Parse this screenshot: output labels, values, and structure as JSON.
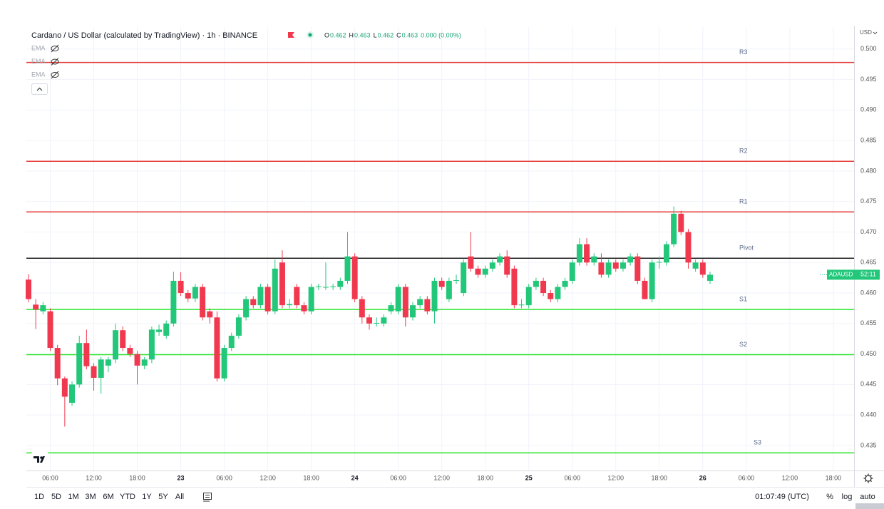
{
  "chart_data": {
    "type": "candlestick",
    "title": "Cardano / US Dollar (calculated by TradingView) · 1h · BINANCE",
    "legend": [
      {
        "label": "O",
        "value": "0.462"
      },
      {
        "label": "H",
        "value": "0.463"
      },
      {
        "label": "L",
        "value": "0.462"
      },
      {
        "label": "C",
        "value": "0.463"
      }
    ],
    "change": "0.000 (0.00%)",
    "indicators": [
      "EMA",
      "EMA",
      "EMA"
    ],
    "currency": "USD",
    "symbol_tag": "ADAUSD",
    "countdown": "52:11",
    "up_color": "#22c77a",
    "down_color": "#f0394f",
    "grid": true,
    "categories": [
      null,
      null,
      null,
      "06:00",
      null,
      null,
      null,
      null,
      null,
      "12:00",
      null,
      null,
      null,
      null,
      null,
      "18:00",
      null,
      null,
      null,
      null,
      null,
      "23",
      null,
      null,
      null,
      null,
      null,
      "06:00",
      null,
      null,
      null,
      null,
      null,
      "12:00",
      null,
      null,
      null,
      null,
      null,
      "18:00",
      null,
      null,
      null,
      null,
      null,
      "24",
      null,
      null,
      null,
      null,
      null,
      "06:00",
      null,
      null,
      null,
      null,
      null,
      "12:00",
      null,
      null,
      null,
      null,
      null,
      "18:00",
      null,
      null,
      null,
      null,
      null,
      "25",
      null,
      null,
      null,
      null,
      null,
      "06:00",
      null,
      null,
      null,
      null,
      null,
      "12:00",
      null,
      null,
      null,
      null,
      null,
      "18:00",
      null,
      null,
      null,
      null,
      null,
      "26",
      null,
      null,
      null,
      null,
      null,
      "06:00",
      null,
      null,
      null,
      null,
      null,
      "12:00",
      null,
      null,
      null,
      null,
      null,
      "18:00",
      null,
      null
    ],
    "open": [
      0.4622,
      0.4581,
      0.457,
      0.457,
      0.451,
      0.446,
      0.442,
      0.445,
      0.4518,
      0.448,
      0.4461,
      0.4481,
      0.4491,
      0.4539,
      0.451,
      0.45,
      0.4481,
      0.4491,
      0.4536,
      0.453,
      0.455,
      0.462,
      0.46,
      0.4591,
      0.461,
      0.457,
      0.456,
      0.446,
      0.451,
      0.453,
      0.456,
      0.459,
      0.458,
      0.461,
      0.457,
      0.465,
      0.458,
      0.461,
      0.458,
      0.457,
      0.461,
      0.461,
      0.461,
      0.461,
      0.462,
      0.466,
      0.459,
      0.456,
      0.455,
      0.455,
      0.457,
      0.457,
      0.461,
      0.456,
      0.458,
      0.459,
      0.457,
      0.462,
      0.459,
      0.462,
      0.46,
      0.466,
      0.464,
      0.463,
      0.464,
      0.465,
      0.466,
      0.464,
      0.458,
      0.458,
      0.461,
      0.462,
      0.46,
      0.459,
      0.461,
      0.462,
      0.465,
      0.468,
      0.465,
      0.465,
      0.463,
      0.465,
      0.464,
      0.465,
      0.466,
      0.462,
      0.459,
      0.465,
      0.465,
      0.468,
      0.473,
      0.47,
      0.464,
      0.465,
      0.462,
      null,
      null,
      null,
      null,
      null,
      null,
      null,
      null,
      null,
      null,
      null,
      null,
      null,
      null,
      null,
      null,
      null,
      null,
      null
    ],
    "high": [
      0.4631,
      0.459,
      0.4585,
      0.4575,
      0.4515,
      0.4463,
      0.4455,
      0.453,
      0.454,
      0.4485,
      0.4495,
      0.4495,
      0.455,
      0.4545,
      0.4515,
      0.4505,
      0.4495,
      0.4545,
      0.4548,
      0.4555,
      0.4635,
      0.4634,
      0.4605,
      0.4615,
      0.4615,
      0.4575,
      0.457,
      0.4515,
      0.4535,
      0.4565,
      0.4595,
      0.4595,
      0.4615,
      0.4615,
      0.4655,
      0.467,
      0.459,
      0.4615,
      0.4585,
      0.4615,
      0.4615,
      0.465,
      0.4615,
      0.4625,
      0.47,
      0.4665,
      0.4595,
      0.4565,
      0.456,
      0.4565,
      0.4585,
      0.4615,
      0.4615,
      0.4585,
      0.4595,
      0.4595,
      0.4625,
      0.4625,
      0.4625,
      0.463,
      0.4655,
      0.47,
      0.4645,
      0.4645,
      0.4655,
      0.4665,
      0.467,
      0.4645,
      0.459,
      0.4615,
      0.4625,
      0.4625,
      0.4605,
      0.4615,
      0.4625,
      0.4655,
      0.469,
      0.469,
      0.4665,
      0.4665,
      0.4655,
      0.4655,
      0.4655,
      0.4665,
      0.4665,
      0.4625,
      0.4655,
      0.466,
      0.4685,
      0.4742,
      0.4735,
      0.4705,
      0.4655,
      0.4655,
      0.4635,
      null,
      null,
      null,
      null,
      null,
      null,
      null,
      null,
      null,
      null,
      null,
      null,
      null,
      null,
      null,
      null,
      null,
      null,
      null
    ],
    "low": [
      0.4585,
      0.4541,
      0.4565,
      0.4505,
      0.4449,
      0.4381,
      0.4415,
      0.4445,
      0.4475,
      0.444,
      0.4435,
      0.447,
      0.4485,
      0.4505,
      0.4495,
      0.445,
      0.4475,
      0.4485,
      0.453,
      0.4525,
      0.4545,
      0.4595,
      0.4585,
      0.4585,
      0.4555,
      0.455,
      0.4455,
      0.4455,
      0.4505,
      0.4525,
      0.4555,
      0.4575,
      0.4575,
      0.4565,
      0.4565,
      0.4575,
      0.4575,
      0.4575,
      0.4565,
      0.4565,
      0.4605,
      0.4605,
      0.4605,
      0.4605,
      0.4615,
      0.4585,
      0.455,
      0.454,
      0.4545,
      0.4545,
      0.4565,
      0.4565,
      0.4545,
      0.4555,
      0.4575,
      0.4565,
      0.455,
      0.4605,
      0.4585,
      0.4615,
      0.4595,
      0.4635,
      0.4625,
      0.4625,
      0.4635,
      0.4645,
      0.4625,
      0.4575,
      0.4575,
      0.4575,
      0.4605,
      0.4595,
      0.4585,
      0.4585,
      0.4605,
      0.4615,
      0.4645,
      0.4645,
      0.4645,
      0.4625,
      0.4625,
      0.4635,
      0.4635,
      0.4645,
      0.4615,
      0.459,
      0.4585,
      0.464,
      0.4645,
      0.4675,
      0.4695,
      0.464,
      0.4635,
      0.4625,
      0.4615,
      null,
      null,
      null,
      null,
      null,
      null,
      null,
      null,
      null,
      null,
      null,
      null,
      null,
      null,
      null,
      null,
      null,
      null,
      null
    ],
    "close": [
      0.459,
      0.4573,
      0.458,
      0.451,
      0.446,
      0.443,
      0.445,
      0.4518,
      0.448,
      0.4461,
      0.4491,
      0.4491,
      0.4539,
      0.451,
      0.45,
      0.4481,
      0.4491,
      0.454,
      0.454,
      0.455,
      0.462,
      0.46,
      0.4591,
      0.461,
      0.456,
      0.456,
      0.446,
      0.451,
      0.453,
      0.456,
      0.459,
      0.458,
      0.461,
      0.457,
      0.464,
      0.458,
      0.4582,
      0.458,
      0.457,
      0.461,
      0.4611,
      0.461,
      0.4611,
      0.462,
      0.466,
      0.459,
      0.456,
      0.455,
      0.4551,
      0.456,
      0.458,
      0.461,
      0.456,
      0.458,
      0.459,
      0.457,
      0.462,
      0.461,
      0.462,
      0.4621,
      0.465,
      0.464,
      0.463,
      0.464,
      0.465,
      0.466,
      0.463,
      0.458,
      0.4581,
      0.461,
      0.462,
      0.46,
      0.459,
      0.461,
      0.462,
      0.465,
      0.468,
      0.465,
      0.466,
      0.463,
      0.465,
      0.464,
      0.465,
      0.466,
      0.462,
      0.459,
      0.465,
      0.4651,
      0.468,
      0.473,
      0.47,
      0.465,
      0.465,
      0.463,
      0.463,
      null,
      null,
      null,
      null,
      null,
      null,
      null,
      null,
      null,
      null,
      null,
      null,
      null,
      null,
      null,
      null,
      null,
      null,
      null
    ],
    "levels": [
      {
        "name": "R3",
        "value": 0.4978,
        "color": "#e53935"
      },
      {
        "name": "R2",
        "value": 0.4816,
        "color": "#e53935"
      },
      {
        "name": "R1",
        "value": 0.4733,
        "color": "#e53935"
      },
      {
        "name": "Pivot",
        "value": 0.4657,
        "color": "#222222"
      },
      {
        "name": "S1",
        "value": 0.4573,
        "color": "#2ee62e"
      },
      {
        "name": "S2",
        "value": 0.4499,
        "color": "#2ee62e"
      },
      {
        "name": "S3",
        "value": 0.4338,
        "color": "#2ee62e"
      }
    ],
    "last_price": 0.463,
    "ylim": [
      0.4309,
      0.5036
    ],
    "yticks": [
      {
        "value": 0.5,
        "label": "0.500"
      },
      0.495,
      {
        "value": 0.49,
        "label": "0.490"
      },
      0.485,
      {
        "value": 0.48,
        "label": "0.480"
      },
      0.475,
      {
        "value": 0.47,
        "label": "0.470"
      },
      0.465,
      {
        "value": 0.46,
        "label": "0.460"
      },
      0.455,
      {
        "value": 0.45,
        "label": "0.450"
      },
      0.445,
      {
        "value": 0.44,
        "label": "0.440"
      },
      0.435
    ],
    "ranges": [
      "1D",
      "5D",
      "1M",
      "3M",
      "6M",
      "YTD",
      "1Y",
      "5Y",
      "All"
    ],
    "clock": "01:07:49 (UTC)",
    "scale_options": [
      "%",
      "log",
      "auto"
    ]
  }
}
